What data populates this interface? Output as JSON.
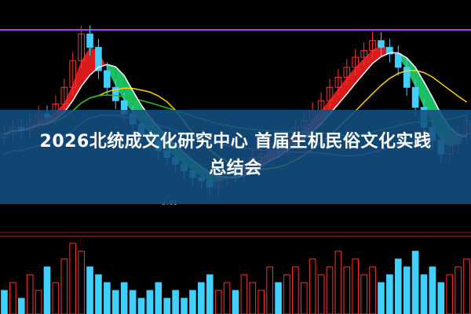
{
  "headline": {
    "line1": "2026北统成文化研究中心 首届生机民俗文化实践",
    "line2": "总结会"
  },
  "chart_data": {
    "type": "candlestick",
    "annotations": [
      "8.01"
    ],
    "colors": {
      "up": "#ff3030",
      "down": "#40d0ff",
      "ma_short": "#ffffff",
      "ma_mid": "#ffd000",
      "ma_long": "#20c020",
      "ma_extra": "#b040ff",
      "ribbon_up": "#ff2020",
      "ribbon_down": "#20e070"
    },
    "ylim": [
      7.5,
      13.5
    ],
    "close": [
      9.6,
      9.8,
      9.7,
      10.0,
      10.2,
      10.1,
      10.5,
      11.0,
      11.8,
      12.6,
      12.2,
      11.5,
      11.0,
      10.6,
      10.2,
      9.9,
      9.6,
      9.4,
      9.1,
      8.9,
      8.7,
      8.5,
      8.3,
      8.2,
      8.01,
      8.3,
      8.5,
      8.4,
      8.7,
      8.9,
      9.0,
      9.3,
      9.2,
      9.5,
      9.8,
      10.0,
      10.3,
      10.6,
      11.0,
      11.3,
      11.6,
      11.9,
      12.1,
      12.4,
      12.2,
      12.0,
      11.6,
      11.0,
      10.4,
      9.8,
      9.4,
      9.0,
      9.3,
      9.6,
      10.0
    ],
    "volume": [
      3,
      4,
      2,
      5,
      3,
      6,
      4,
      7,
      9,
      8,
      6,
      5,
      4,
      3,
      4,
      3,
      2,
      3,
      4,
      2,
      3,
      2,
      3,
      4,
      5,
      3,
      4,
      3,
      5,
      4,
      3,
      6,
      4,
      5,
      6,
      4,
      7,
      5,
      6,
      8,
      6,
      7,
      5,
      6,
      4,
      5,
      7,
      6,
      8,
      5,
      6,
      4,
      5,
      6,
      7
    ]
  }
}
